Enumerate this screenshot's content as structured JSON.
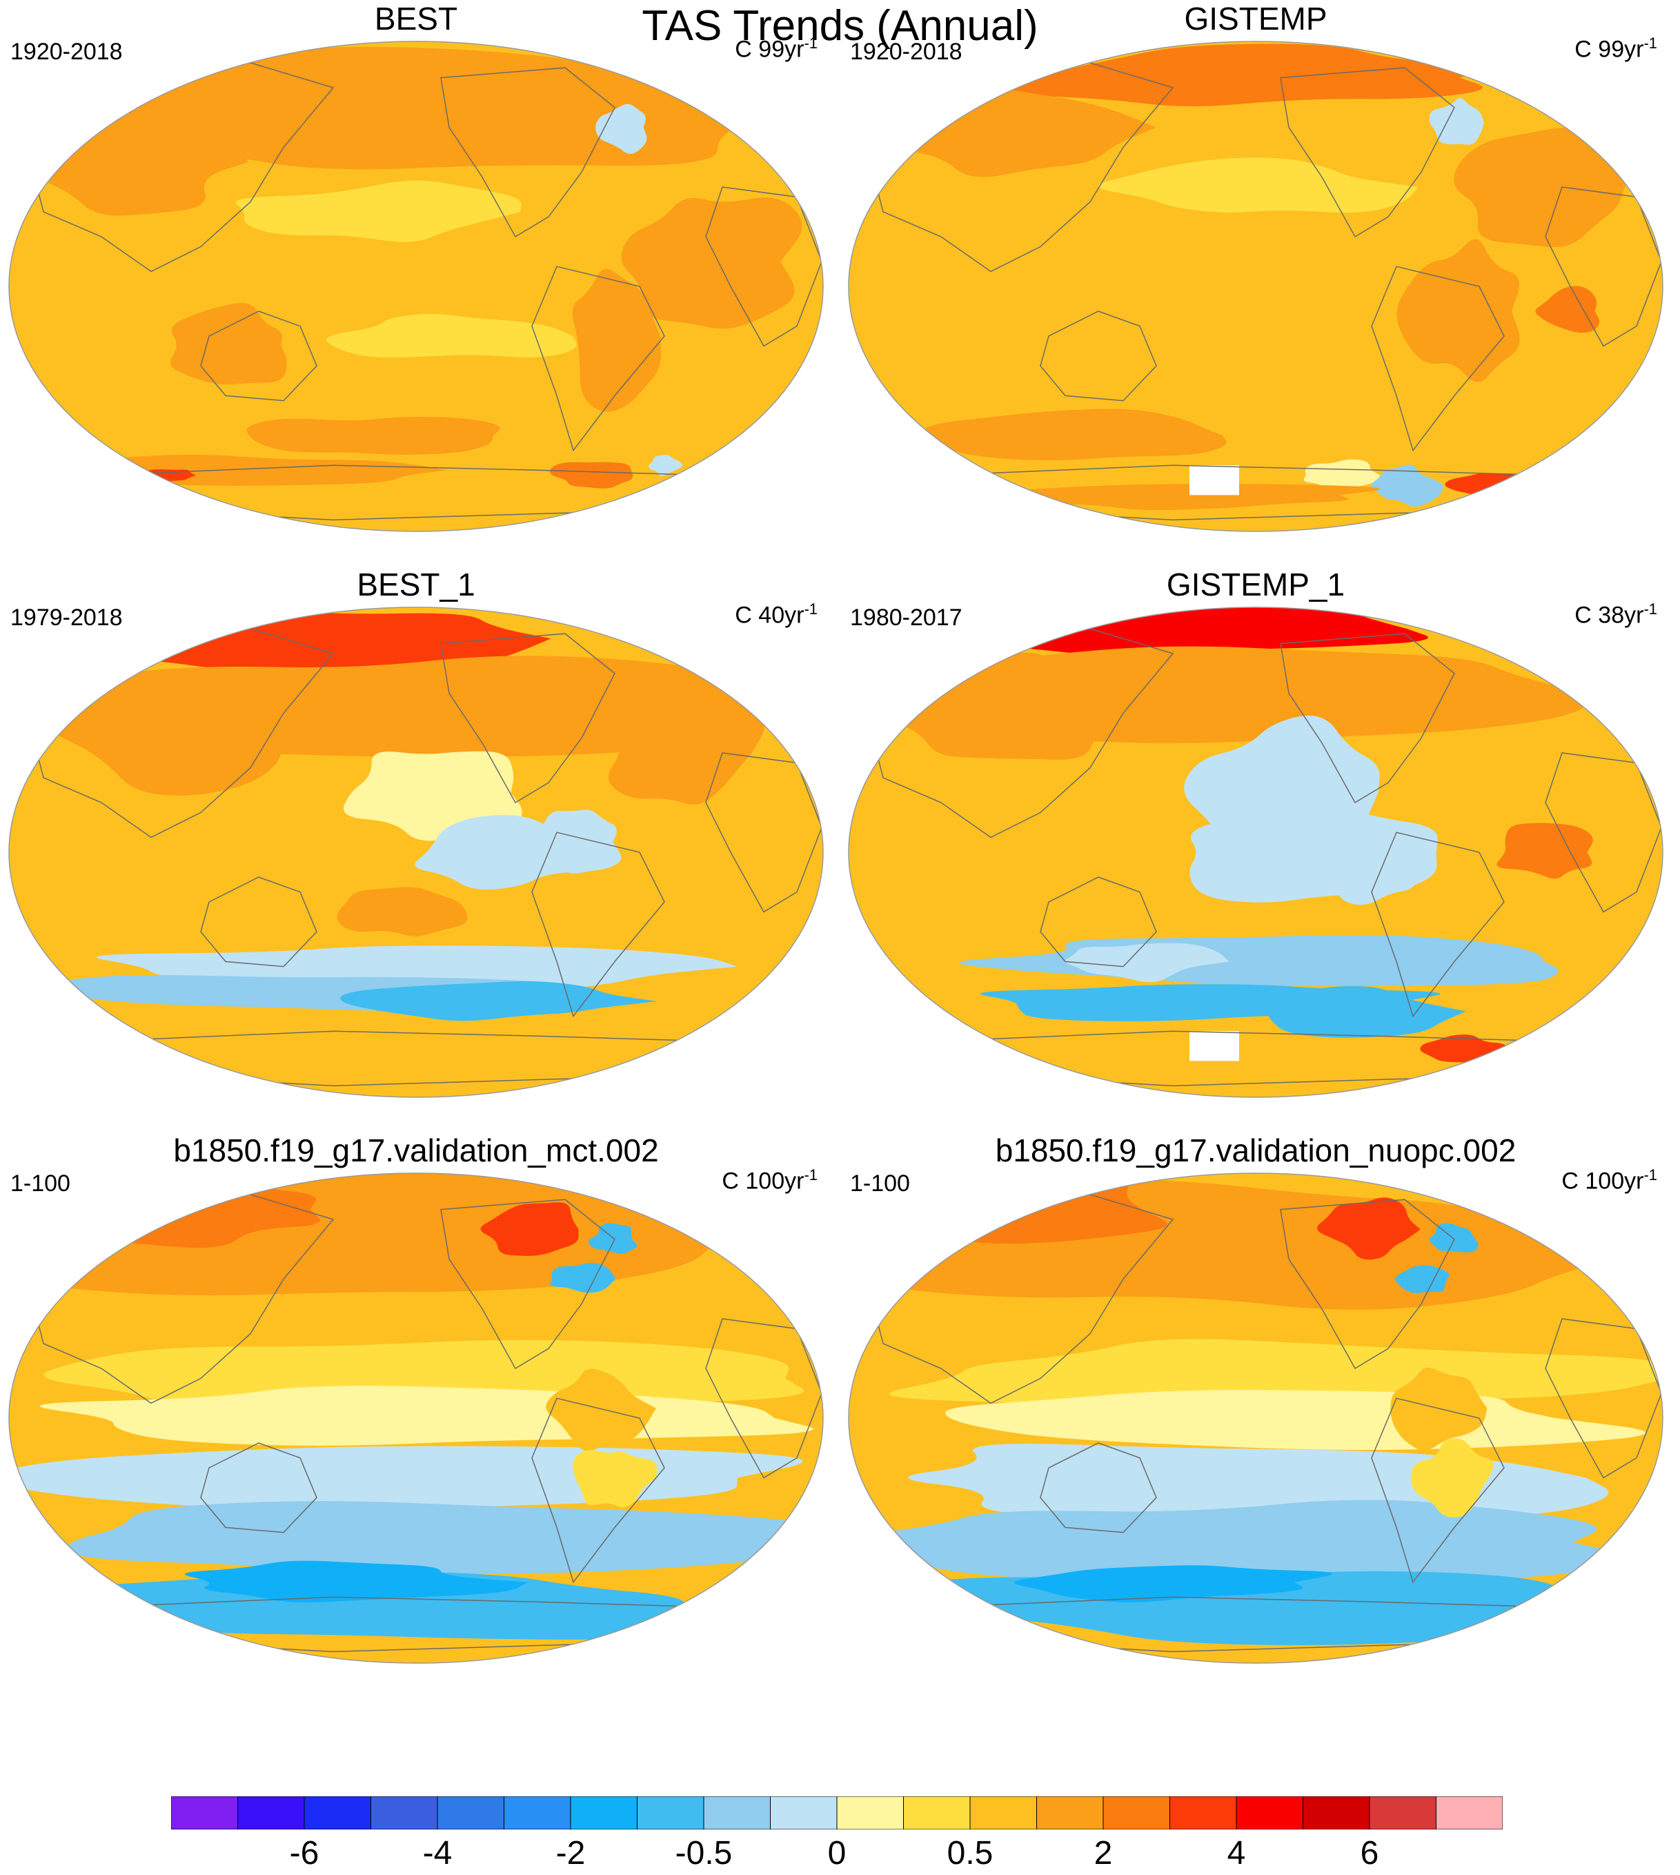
{
  "title": "TAS Trends (Annual)",
  "panels": [
    {
      "title": "BEST",
      "years": "1920-2018",
      "units": "C 99yr",
      "units_exp": "-1",
      "pattern": "warm_long"
    },
    {
      "title": "GISTEMP",
      "years": "1920-2018",
      "units": "C 99yr",
      "units_exp": "-1",
      "pattern": "warm_long_gis"
    },
    {
      "title": "BEST_1",
      "years": "1979-2018",
      "units": "C 40yr",
      "units_exp": "-1",
      "pattern": "recent"
    },
    {
      "title": "GISTEMP_1",
      "years": "1980-2017",
      "units": "C 38yr",
      "units_exp": "-1",
      "pattern": "recent_gis"
    },
    {
      "title": "b1850.f19_g17.validation_mct.002",
      "years": "1-100",
      "units": "C 100yr",
      "units_exp": "-1",
      "pattern": "model"
    },
    {
      "title": "b1850.f19_g17.validation_nuopc.002",
      "years": "1-100",
      "units": "C 100yr",
      "units_exp": "-1",
      "pattern": "model"
    }
  ],
  "colorbar": {
    "colors": [
      "#8020f0",
      "#3a10f8",
      "#1a2cf5",
      "#3a5ee0",
      "#2e7ae8",
      "#2890f5",
      "#10b0f8",
      "#40bcf0",
      "#90cdee",
      "#c0e2f5",
      "#fff6a0",
      "#ffdf40",
      "#fdc020",
      "#fb9e18",
      "#fb7c10",
      "#fb3c08",
      "#fb0000",
      "#d20000",
      "#d83a3a",
      "#ffb0b4"
    ],
    "labels": [
      "-6",
      "-4",
      "-2",
      "-0.5",
      "0",
      "0.5",
      "2",
      "4",
      "6"
    ]
  }
}
